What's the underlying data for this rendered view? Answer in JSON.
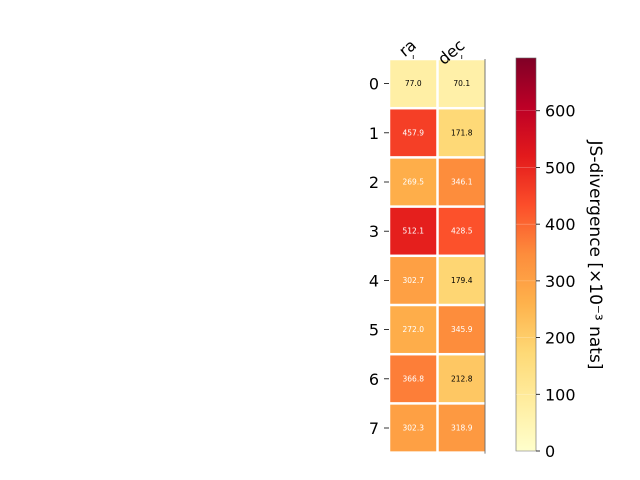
{
  "chart_data": {
    "type": "heatmap",
    "columns": [
      "ra",
      "dec"
    ],
    "rows": [
      "0",
      "1",
      "2",
      "3",
      "4",
      "5",
      "6",
      "7"
    ],
    "values": [
      [
        77.0,
        70.1
      ],
      [
        457.9,
        171.8
      ],
      [
        269.5,
        346.1
      ],
      [
        512.1,
        428.5
      ],
      [
        302.7,
        179.4
      ],
      [
        272.0,
        345.9
      ],
      [
        366.8,
        212.8
      ],
      [
        302.3,
        318.9
      ]
    ],
    "cell_labels": [
      [
        "77.0",
        "70.1"
      ],
      [
        "457.9",
        "171.8"
      ],
      [
        "269.5",
        "346.1"
      ],
      [
        "512.1",
        "428.5"
      ],
      [
        "302.7",
        "179.4"
      ],
      [
        "272.0",
        "345.9"
      ],
      [
        "366.8",
        "212.8"
      ],
      [
        "302.3",
        "318.9"
      ]
    ],
    "colorbar": {
      "label": "JS-divergence [×10⁻³ nats]",
      "range": [
        0,
        693
      ],
      "ticks": [
        0,
        100,
        200,
        300,
        400,
        500,
        600
      ],
      "tick_labels": [
        "0",
        "100",
        "200",
        "300",
        "400",
        "500",
        "600"
      ],
      "colormap": "YlOrRd"
    },
    "grid": false,
    "legend": "none"
  }
}
